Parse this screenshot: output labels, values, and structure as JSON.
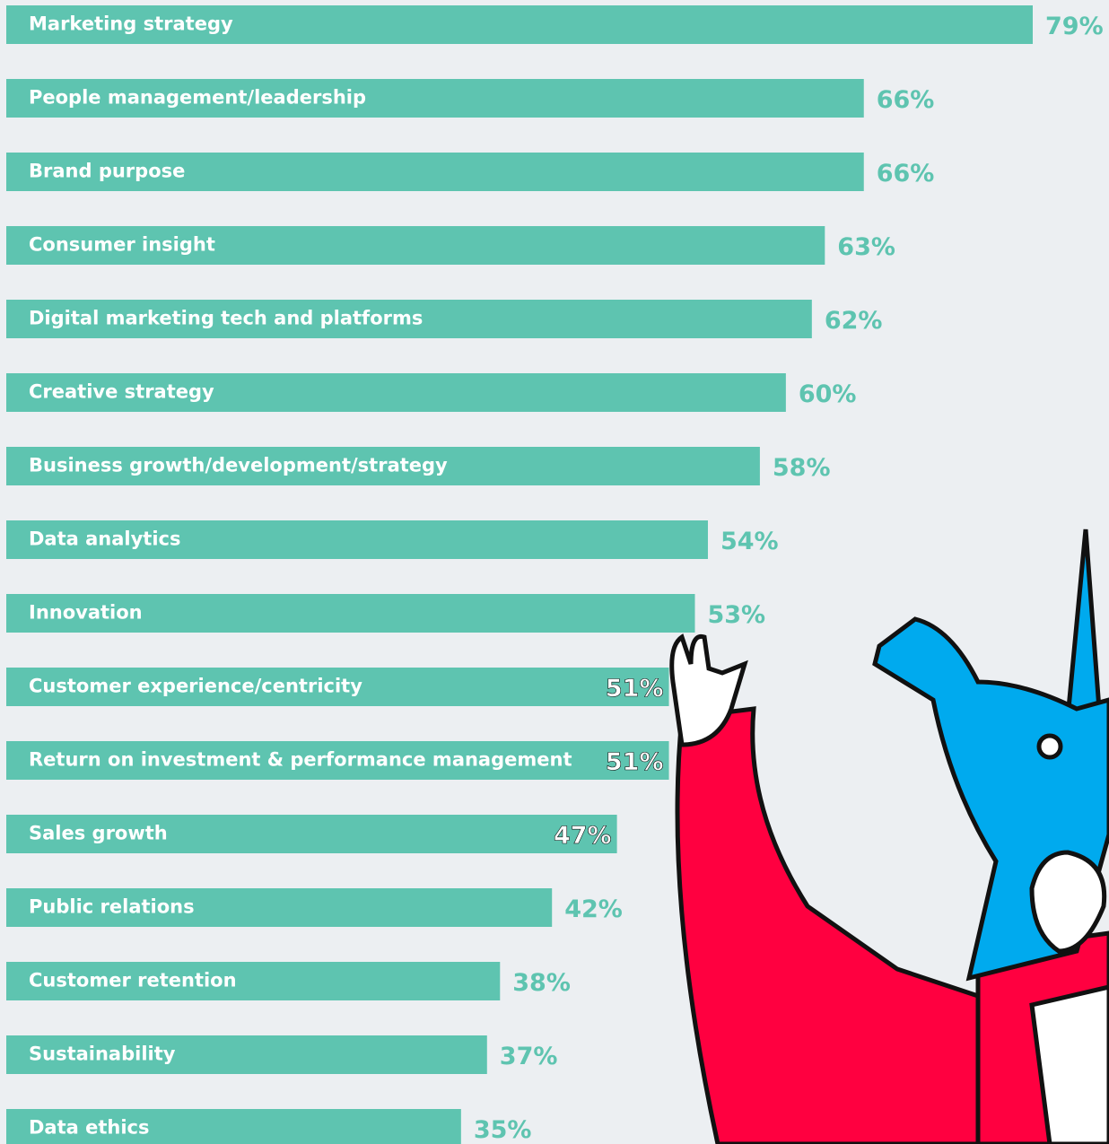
{
  "chart_data": {
    "type": "bar",
    "orientation": "horizontal",
    "color": "#5ec4b0",
    "categories": [
      "Marketing strategy",
      "People management/leadership",
      "Brand purpose",
      "Consumer insight",
      "Digital marketing tech and platforms",
      "Creative strategy",
      "Business growth/development/strategy",
      "Data analytics",
      "Innovation",
      "Customer experience/centricity",
      "Return on investment & performance management",
      "Sales growth",
      "Public relations",
      "Customer retention",
      "Sustainability",
      "Data ethics"
    ],
    "values": [
      79,
      66,
      66,
      63,
      62,
      60,
      58,
      54,
      53,
      51,
      51,
      47,
      42,
      38,
      37,
      35
    ],
    "value_labels": [
      "79%",
      "66%",
      "66%",
      "63%",
      "62%",
      "60%",
      "58%",
      "54%",
      "53%",
      "51%",
      "51%",
      "47%",
      "42%",
      "38%",
      "37%",
      "35%"
    ]
  }
}
